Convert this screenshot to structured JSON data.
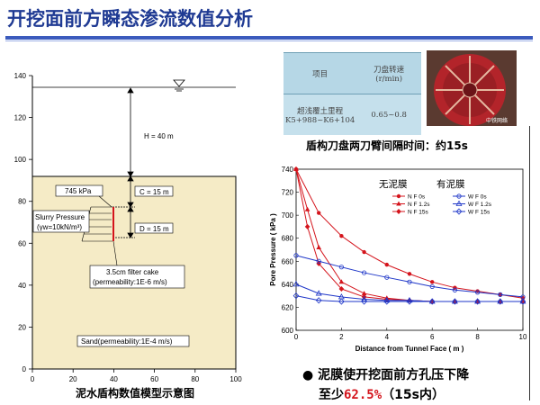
{
  "slide": {
    "title": "开挖面前方瞬态渗流数值分析",
    "accent_color": "#1f3a93"
  },
  "model": {
    "caption": "泥水盾构数值模型示意图",
    "y_ticks": [
      "140",
      "120",
      "100",
      "80",
      "60",
      "40",
      "20",
      "0"
    ],
    "x_ticks": [
      "0",
      "20",
      "40",
      "60",
      "80",
      "100"
    ],
    "h_label": "H = 40 m",
    "c_label": "C = 15 m",
    "d_label": "D = 15 m",
    "pressure_label": "745 kPa",
    "slurry_label": "Slurry Pressure",
    "gamma_label": "(γw=10kN/m³)",
    "filter_line1": "3.5cm filter cake",
    "filter_line2": "(permeability:1E-6 m/s)",
    "sand_label": "Sand(permeability:1E-4 m/s)",
    "soil_color": "#f5ebc6"
  },
  "info_table": {
    "header_left": "项目",
    "header_right_line1": "刀盘转速",
    "header_right_line2": "(r/min)",
    "row_left_line1": "超浅覆土里程",
    "row_left_line2": "K5+988~K6+104",
    "row_right": "0.65~0.8"
  },
  "photo": {
    "watermark": "中铁网络"
  },
  "interval_caption": "盾构刀盘两刀臂间隔时间：约15s",
  "chart_data": {
    "type": "line",
    "xlabel": "Distance from Tunnel Face ( m )",
    "ylabel": "Pore Pressure ( kPa )",
    "xlim": [
      0,
      10
    ],
    "ylim": [
      600,
      740
    ],
    "x_ticks": [
      0,
      2,
      4,
      6,
      8,
      10
    ],
    "y_ticks": [
      600,
      620,
      640,
      660,
      680,
      700,
      720,
      740
    ],
    "group_labels": [
      "无泥膜",
      "有泥膜"
    ],
    "legend_position": "top-right",
    "series": [
      {
        "name": "N F 0s",
        "color": "#d4141c",
        "marker": "circle",
        "x": [
          0,
          1,
          2,
          3,
          4,
          5,
          6,
          7,
          8,
          9,
          10
        ],
        "values": [
          740,
          702,
          682,
          668,
          657,
          649,
          642,
          637,
          634,
          631,
          628
        ]
      },
      {
        "name": "N F 1.2s",
        "color": "#d4141c",
        "marker": "triangle",
        "x": [
          0,
          0.5,
          1,
          2,
          3,
          4,
          5,
          6,
          7,
          8,
          9,
          10
        ],
        "values": [
          740,
          705,
          672,
          642,
          632,
          628,
          626,
          625,
          625,
          625,
          625,
          625
        ]
      },
      {
        "name": "N F 15s",
        "color": "#d4141c",
        "marker": "diamond",
        "x": [
          0,
          0.5,
          1,
          2,
          3,
          4,
          5,
          6,
          7,
          8,
          9,
          10
        ],
        "values": [
          740,
          690,
          658,
          636,
          629,
          627,
          626,
          625,
          625,
          625,
          625,
          625
        ]
      },
      {
        "name": "W F 0s",
        "color": "#1e36c8",
        "marker": "circle",
        "x": [
          0,
          1,
          2,
          3,
          4,
          5,
          6,
          7,
          8,
          9,
          10
        ],
        "values": [
          665,
          660,
          655,
          650,
          646,
          642,
          638,
          635,
          633,
          631,
          629
        ]
      },
      {
        "name": "W F 1.2s",
        "color": "#1e36c8",
        "marker": "triangle",
        "x": [
          0,
          1,
          2,
          3,
          4,
          5,
          6,
          7,
          8,
          9,
          10
        ],
        "values": [
          640,
          632,
          629,
          627,
          626,
          626,
          625,
          625,
          625,
          625,
          625
        ]
      },
      {
        "name": "W F 15s",
        "color": "#1e36c8",
        "marker": "diamond",
        "x": [
          0,
          1,
          2,
          3,
          4,
          5,
          6,
          7,
          8,
          9,
          10
        ],
        "values": [
          630,
          626,
          625,
          625,
          625,
          625,
          625,
          625,
          625,
          625,
          625
        ]
      }
    ]
  },
  "bullet": {
    "line1": "泥膜使开挖面前方孔压下降",
    "line2_prefix": "至少",
    "line2_highlight": "62.5%",
    "line2_suffix": "（15s内）",
    "highlight_color": "#d4141c"
  }
}
